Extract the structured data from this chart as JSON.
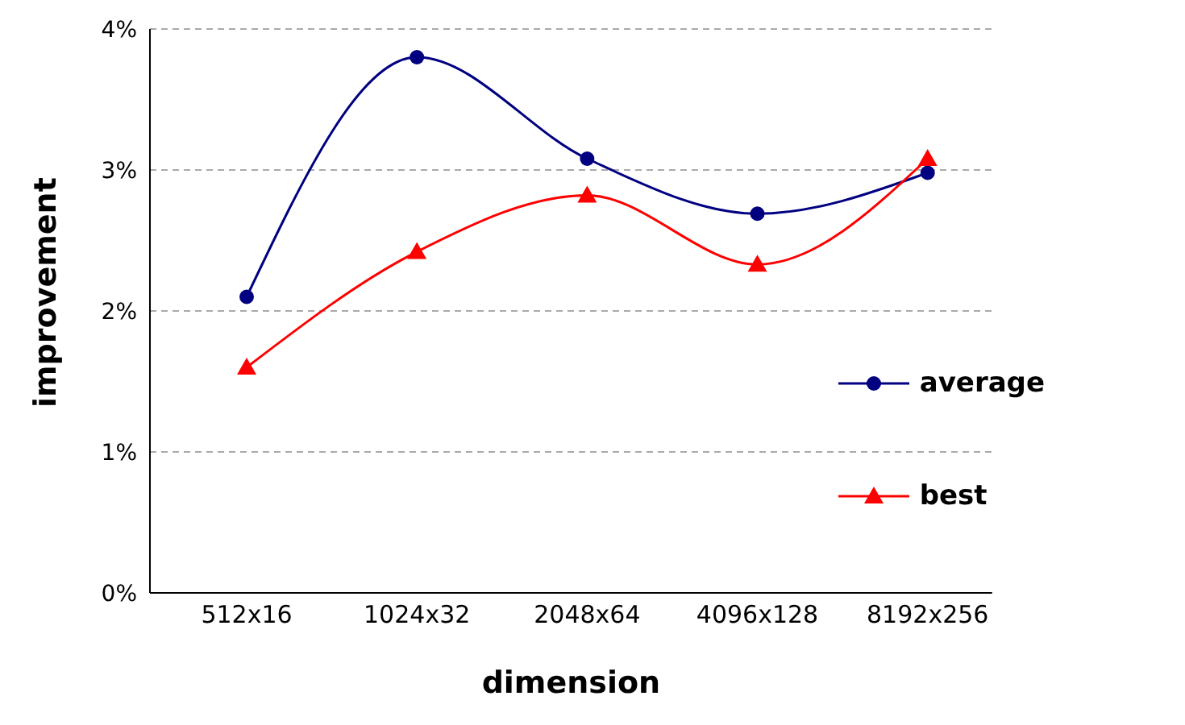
{
  "chart_data": {
    "type": "line",
    "xlabel": "dimension",
    "ylabel": "improvement",
    "categories": [
      "512x16",
      "1024x32",
      "2048x64",
      "4096x128",
      "8192x256"
    ],
    "series": [
      {
        "name": "average",
        "color": "#000080",
        "marker": "circle",
        "values": [
          2.1,
          3.8,
          3.08,
          2.69,
          2.98
        ]
      },
      {
        "name": "best",
        "color": "#ff0000",
        "marker": "triangle",
        "values": [
          1.6,
          2.42,
          2.82,
          2.33,
          3.08
        ]
      }
    ],
    "ylim": [
      0,
      4
    ],
    "yticks": [
      {
        "value": 0,
        "label": "0%"
      },
      {
        "value": 1,
        "label": "1%"
      },
      {
        "value": 2,
        "label": "2%"
      },
      {
        "value": 3,
        "label": "3%"
      },
      {
        "value": 4,
        "label": "4%"
      }
    ],
    "grid": "y",
    "legend": "right"
  }
}
